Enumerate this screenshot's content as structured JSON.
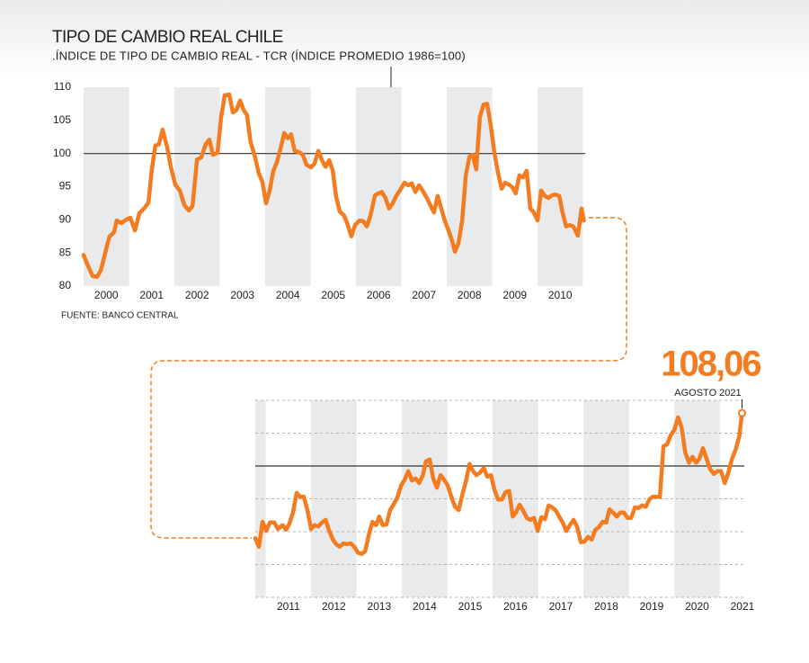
{
  "chart_data": [
    {
      "type": "line",
      "title": "TIPO DE CAMBIO REAL CHILE",
      "subtitle": ".ÍNDICE DE TIPO DE CAMBIO REAL - TCR (ÍNDICE PROMEDIO 1986=100)",
      "source": "FUENTE: BANCO CENTRAL",
      "color": "#f47c20",
      "grid": false,
      "tick_labels": true,
      "reference_line": 100,
      "xlim": [
        2000,
        2011.05
      ],
      "xticks": [
        2000,
        2001,
        2002,
        2003,
        2004,
        2005,
        2006,
        2007,
        2008,
        2009,
        2010
      ],
      "ylim": [
        80,
        110
      ],
      "yticks": [
        80,
        85,
        90,
        95,
        100,
        105,
        110
      ],
      "x": [
        2000.0,
        2000.1,
        2000.2,
        2000.3,
        2000.38,
        2000.5,
        2000.57,
        2000.67,
        2000.73,
        2000.83,
        2000.93,
        2001.03,
        2001.13,
        2001.23,
        2001.33,
        2001.43,
        2001.5,
        2001.58,
        2001.66,
        2001.74,
        2001.84,
        2001.92,
        2002.02,
        2002.12,
        2002.22,
        2002.32,
        2002.4,
        2002.5,
        2002.59,
        2002.69,
        2002.77,
        2002.85,
        2002.95,
        2003.03,
        2003.11,
        2003.21,
        2003.29,
        2003.37,
        2003.45,
        2003.52,
        2003.6,
        2003.68,
        2003.78,
        2003.86,
        2003.94,
        2004.02,
        2004.1,
        2004.18,
        2004.26,
        2004.34,
        2004.42,
        2004.5,
        2004.57,
        2004.65,
        2004.75,
        2004.83,
        2004.91,
        2005.01,
        2005.09,
        2005.17,
        2005.25,
        2005.33,
        2005.41,
        2005.49,
        2005.56,
        2005.64,
        2005.74,
        2005.82,
        2005.9,
        2005.98,
        2006.08,
        2006.16,
        2006.24,
        2006.32,
        2006.42,
        2006.5,
        2006.57,
        2006.65,
        2006.73,
        2006.81,
        2006.89,
        2006.99,
        2007.07,
        2007.15,
        2007.23,
        2007.31,
        2007.39,
        2007.47,
        2007.56,
        2007.64,
        2007.72,
        2007.8,
        2007.88,
        2007.96,
        2008.04,
        2008.12,
        2008.18,
        2008.26,
        2008.34,
        2008.42,
        2008.5,
        2008.57,
        2008.65,
        2008.73,
        2008.81,
        2008.89,
        2008.97,
        2009.05,
        2009.13,
        2009.21,
        2009.29,
        2009.37,
        2009.45,
        2009.52,
        2009.6,
        2009.68,
        2009.76,
        2009.84,
        2009.92,
        2010.0,
        2010.08,
        2010.16,
        2010.24,
        2010.32,
        2010.4,
        2010.48,
        2010.55,
        2010.63,
        2010.71,
        2010.79,
        2010.89,
        2010.97,
        2011.02
      ],
      "values": [
        84.7,
        83.0,
        81.5,
        81.4,
        82.4,
        85.6,
        87.5,
        88.1,
        89.9,
        89.5,
        90.0,
        90.3,
        88.4,
        91.0,
        91.7,
        92.6,
        97.4,
        101.2,
        101.4,
        103.6,
        101.0,
        98.0,
        95.3,
        94.4,
        92.2,
        91.4,
        92.1,
        99.1,
        99.4,
        101.4,
        102.1,
        99.8,
        100.1,
        105.5,
        108.8,
        108.9,
        106.2,
        106.6,
        108.0,
        106.6,
        105.8,
        101.7,
        99.4,
        97.0,
        95.7,
        92.5,
        94.4,
        97.4,
        98.7,
        100.8,
        103.1,
        102.3,
        102.9,
        100.4,
        100.2,
        99.8,
        98.3,
        97.9,
        98.5,
        100.4,
        99.0,
        98.0,
        99.0,
        97.4,
        93.6,
        91.3,
        90.6,
        89.2,
        87.5,
        89.2,
        89.9,
        89.8,
        89.0,
        90.6,
        93.7,
        94.0,
        94.2,
        93.3,
        91.7,
        92.5,
        93.6,
        94.7,
        95.6,
        95.2,
        95.5,
        94.2,
        95.2,
        94.4,
        93.3,
        92.2,
        91.1,
        93.6,
        91.7,
        89.8,
        88.4,
        86.8,
        85.2,
        86.5,
        89.9,
        96.7,
        99.5,
        99.8,
        97.6,
        105.5,
        107.4,
        107.5,
        104.2,
        100.1,
        97.1,
        94.7,
        95.6,
        95.3,
        94.9,
        94.0,
        96.7,
        96.4,
        97.4,
        91.7,
        91.1,
        89.9,
        94.4,
        93.6,
        93.3,
        93.7,
        93.8,
        93.6,
        91.1,
        89.0,
        89.2,
        89.0,
        87.6,
        91.7,
        89.9
      ]
    },
    {
      "type": "line",
      "color": "#f47c20",
      "grid": true,
      "tick_labels": false,
      "reference_line": 100,
      "xlim": [
        2010.77,
        2021.54
      ],
      "xticks": [
        2011,
        2012,
        2013,
        2014,
        2015,
        2016,
        2017,
        2018,
        2019,
        2020,
        2021
      ],
      "ylim": [
        80,
        110
      ],
      "yticks": [
        80,
        85,
        90,
        95,
        100,
        105,
        110
      ],
      "highlight": {
        "label": "108,06",
        "note": "AGOSTO 2021"
      },
      "x": [
        2010.77,
        2010.85,
        2010.93,
        2011.01,
        2011.09,
        2011.19,
        2011.27,
        2011.37,
        2011.45,
        2011.52,
        2011.6,
        2011.68,
        2011.76,
        2011.84,
        2011.92,
        2012.0,
        2012.08,
        2012.16,
        2012.24,
        2012.32,
        2012.4,
        2012.48,
        2012.55,
        2012.63,
        2012.71,
        2012.79,
        2012.87,
        2012.95,
        2013.03,
        2013.11,
        2013.19,
        2013.27,
        2013.35,
        2013.43,
        2013.5,
        2013.58,
        2013.66,
        2013.74,
        2013.82,
        2013.9,
        2013.98,
        2014.06,
        2014.14,
        2014.22,
        2014.3,
        2014.38,
        2014.46,
        2014.53,
        2014.61,
        2014.69,
        2014.77,
        2014.85,
        2014.93,
        2015.01,
        2015.09,
        2015.17,
        2015.25,
        2015.33,
        2015.41,
        2015.49,
        2015.56,
        2015.64,
        2015.72,
        2015.8,
        2015.88,
        2015.96,
        2016.04,
        2016.12,
        2016.2,
        2016.28,
        2016.36,
        2016.44,
        2016.51,
        2016.59,
        2016.67,
        2016.75,
        2016.83,
        2016.91,
        2016.99,
        2017.07,
        2017.15,
        2017.23,
        2017.31,
        2017.39,
        2017.47,
        2017.54,
        2017.62,
        2017.7,
        2017.78,
        2017.86,
        2017.94,
        2018.02,
        2018.1,
        2018.18,
        2018.26,
        2018.34,
        2018.42,
        2018.5,
        2018.57,
        2018.65,
        2018.73,
        2018.81,
        2018.89,
        2018.97,
        2019.05,
        2019.13,
        2019.21,
        2019.29,
        2019.37,
        2019.45,
        2019.52,
        2019.6,
        2019.68,
        2019.76,
        2019.84,
        2019.92,
        2020.0,
        2020.08,
        2020.16,
        2020.24,
        2020.32,
        2020.4,
        2020.48,
        2020.55,
        2020.63,
        2020.71,
        2020.79,
        2020.87,
        2020.95,
        2021.03,
        2021.11,
        2021.19,
        2021.27,
        2021.35,
        2021.43,
        2021.49
      ],
      "values": [
        89.0,
        87.7,
        91.5,
        90.1,
        91.4,
        91.4,
        90.4,
        91.0,
        90.3,
        91.2,
        92.9,
        95.9,
        95.3,
        95.3,
        93.2,
        90.4,
        91.0,
        90.8,
        91.4,
        91.8,
        90.1,
        88.8,
        88.1,
        87.7,
        88.2,
        88.1,
        88.2,
        87.7,
        86.8,
        86.6,
        87.0,
        89.5,
        91.5,
        91.0,
        92.3,
        91.0,
        91.1,
        93.3,
        94.2,
        95.2,
        97.0,
        97.9,
        99.2,
        97.8,
        98.1,
        97.4,
        98.6,
        100.7,
        101.0,
        98.1,
        96.7,
        98.6,
        97.9,
        97.0,
        95.3,
        93.8,
        93.3,
        95.6,
        97.7,
        100.3,
        99.3,
        98.6,
        99.0,
        99.7,
        98.4,
        98.6,
        96.3,
        94.9,
        94.9,
        96.0,
        96.2,
        92.3,
        92.9,
        94.1,
        93.2,
        92.1,
        91.8,
        92.1,
        90.1,
        92.2,
        91.9,
        94.0,
        93.7,
        93.2,
        92.2,
        91.4,
        90.1,
        91.0,
        91.8,
        90.7,
        88.4,
        88.5,
        89.2,
        88.8,
        90.3,
        90.7,
        91.5,
        91.4,
        93.4,
        92.9,
        92.3,
        92.9,
        92.9,
        92.1,
        92.1,
        93.7,
        93.6,
        94.0,
        93.8,
        94.9,
        95.3,
        95.3,
        95.3,
        103.0,
        103.3,
        104.7,
        105.5,
        107.4,
        105.9,
        102.1,
        100.5,
        101.4,
        100.5,
        101.1,
        102.7,
        101.1,
        99.5,
        98.8,
        99.2,
        99.2,
        97.4,
        99.0,
        101.1,
        102.5,
        104.5,
        108.06
      ]
    }
  ]
}
